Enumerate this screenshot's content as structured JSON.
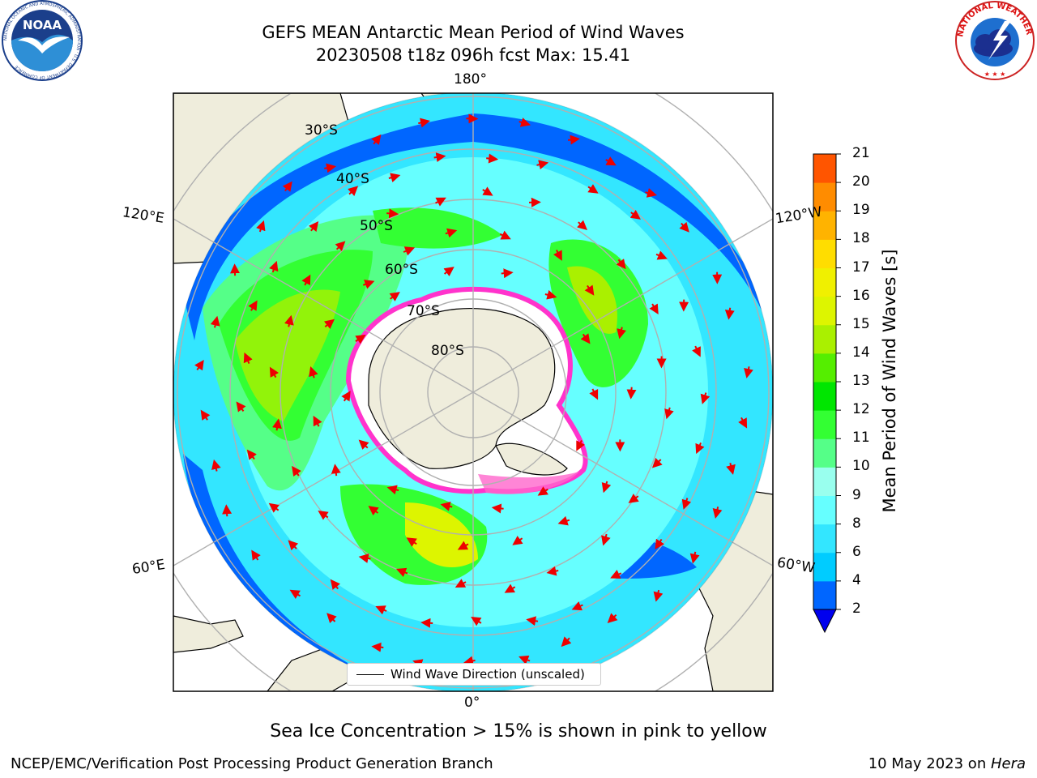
{
  "title_line1": "GEFS MEAN Antarctic Mean Period of Wind Waves",
  "title_line2": "20230508 t18z 096h fcst   Max: 15.41",
  "colorbar": {
    "label": "Mean Period of Wind Waves [s]",
    "ticks": [
      "2",
      "4",
      "6",
      "8",
      "9",
      "10",
      "11",
      "12",
      "13",
      "14",
      "15",
      "16",
      "17",
      "18",
      "19",
      "20",
      "21"
    ],
    "colors": [
      "#0066ff",
      "#00ccff",
      "#33e6ff",
      "#66ffff",
      "#99ffee",
      "#55ff88",
      "#33ff33",
      "#00e600",
      "#55ee00",
      "#aaf000",
      "#ddf500",
      "#f0f000",
      "#ffdd00",
      "#ffb300",
      "#ff8c00",
      "#ff5500",
      "#ff2200",
      "#ff0000"
    ],
    "under_color": "#0000ee"
  },
  "grid_labels": {
    "lat": [
      "30°S",
      "40°S",
      "50°S",
      "60°S",
      "70°S",
      "80°S"
    ],
    "lon": {
      "top": "180°",
      "bottom": "0°",
      "upper_left": "120°E",
      "upper_right": "120°W",
      "lower_left": "60°E",
      "lower_right": "60°W"
    }
  },
  "legend_label": "Wind Wave Direction (unscaled)",
  "note": "Sea Ice Concentration > 15% is shown in pink to yellow",
  "footer_left": "NCEP/EMC/Verification Post Processing Product Generation Branch",
  "footer_right_date": "10 May 2023 on ",
  "footer_right_machine": "Hera",
  "logos": {
    "noaa": {
      "text": "NOAA",
      "ring_text": "NATIONAL OCEANIC AND ATMOSPHERIC ADMINISTRATION · U.S. DEPARTMENT OF COMMERCE",
      "icon": "noaa-seagull-logo"
    },
    "nws": {
      "ring_text": "NATIONAL WEATHER SERVICE",
      "icon": "nws-lightning-cloud-logo"
    }
  },
  "colors": {
    "land": "#efeddc",
    "ice_edge": "#ff33cc",
    "arrow": "#ee0000",
    "grid": "#b0b0b0"
  }
}
